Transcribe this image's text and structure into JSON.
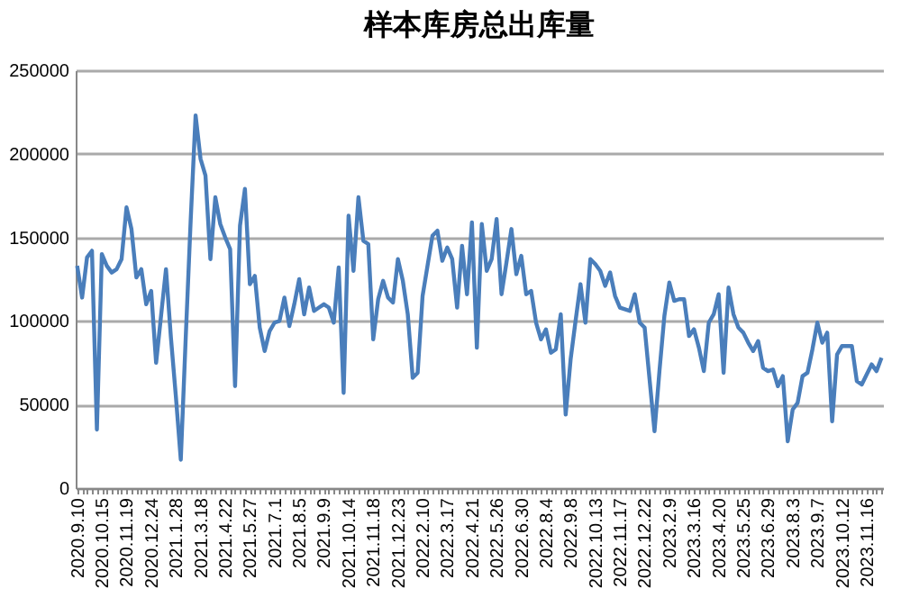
{
  "chart_data": {
    "type": "line",
    "title": "样本库房总出库量",
    "categories": [
      "2020.9.10",
      null,
      null,
      null,
      null,
      "2020.10.15",
      null,
      null,
      null,
      null,
      "2020.11.19",
      null,
      null,
      null,
      null,
      "2020.12.24",
      null,
      null,
      null,
      null,
      "2021.1.28",
      null,
      null,
      null,
      null,
      "2021.3.18",
      null,
      null,
      null,
      null,
      "2021.4.22",
      null,
      null,
      null,
      null,
      "2021.5.27",
      null,
      null,
      null,
      null,
      "2021.7.1",
      null,
      null,
      null,
      null,
      "2021.8.5",
      null,
      null,
      null,
      null,
      "2021.9.9",
      null,
      null,
      null,
      null,
      "2021.10.14",
      null,
      null,
      null,
      null,
      "2021.11.18",
      null,
      null,
      null,
      null,
      "2021.12.23",
      null,
      null,
      null,
      null,
      "2022.2.10",
      null,
      null,
      null,
      null,
      "2022.3.17",
      null,
      null,
      null,
      null,
      "2022.4.21",
      null,
      null,
      null,
      null,
      "2022.5.26",
      null,
      null,
      null,
      null,
      "2022.6.30",
      null,
      null,
      null,
      null,
      "2022.8.4",
      null,
      null,
      null,
      null,
      "2022.9.8",
      null,
      null,
      null,
      null,
      "2022.10.13",
      null,
      null,
      null,
      null,
      "2022.11.17",
      null,
      null,
      null,
      null,
      "2022.12.22",
      null,
      null,
      null,
      null,
      "2023.2.9",
      null,
      null,
      null,
      null,
      "2023.3.16",
      null,
      null,
      null,
      null,
      "2023.4.20",
      null,
      null,
      null,
      null,
      "2023.5.25",
      null,
      null,
      null,
      null,
      "2023.6.29",
      null,
      null,
      null,
      null,
      "2023.8.3",
      null,
      null,
      null,
      null,
      "2023.9.7",
      null,
      null,
      null,
      null,
      "2023.10.12",
      null,
      null,
      null,
      null,
      "2023.11.16",
      null,
      null,
      null
    ],
    "series": [
      {
        "color": "#4a7ebb",
        "values": [
          133000,
          114000,
          138000,
          142000,
          35000,
          140000,
          133000,
          129000,
          131000,
          137000,
          168000,
          155000,
          126000,
          131000,
          110000,
          118000,
          75000,
          103000,
          131000,
          90000,
          55000,
          17000,
          90000,
          160000,
          223000,
          197000,
          187000,
          137000,
          174000,
          158000,
          150000,
          143000,
          61000,
          157000,
          179000,
          122000,
          127000,
          96000,
          82000,
          94000,
          99000,
          100000,
          114000,
          97000,
          110000,
          125000,
          104000,
          120000,
          106000,
          108000,
          110000,
          108000,
          99000,
          132000,
          57000,
          163000,
          130000,
          174000,
          148000,
          146000,
          89000,
          113000,
          124000,
          114000,
          111000,
          137000,
          124000,
          104000,
          66000,
          69000,
          115000,
          133000,
          151000,
          154000,
          136000,
          144000,
          137000,
          108000,
          145000,
          116000,
          159000,
          84000,
          158000,
          130000,
          137000,
          161000,
          116000,
          135000,
          155000,
          128000,
          139000,
          116000,
          118000,
          99000,
          89000,
          95000,
          81000,
          83000,
          104000,
          44000,
          77000,
          100000,
          122000,
          99000,
          137000,
          134000,
          130000,
          121000,
          129000,
          115000,
          108000,
          107000,
          106000,
          116000,
          99000,
          96000,
          65000,
          34000,
          70000,
          103000,
          123000,
          112000,
          113000,
          113000,
          91000,
          95000,
          84000,
          70000,
          99000,
          104000,
          116000,
          69000,
          120000,
          104000,
          96000,
          93000,
          87000,
          82000,
          88000,
          72000,
          70000,
          71000,
          61000,
          67000,
          28000,
          47000,
          51000,
          67000,
          69000,
          83000,
          99000,
          87000,
          93000,
          40000,
          80000,
          85000,
          85000,
          85000,
          64000,
          62000,
          68000,
          74000,
          70000,
          78000
        ]
      }
    ],
    "ylim": [
      0,
      250000
    ],
    "yticks": [
      0,
      50000,
      100000,
      150000,
      200000,
      250000
    ],
    "grid": "y",
    "legend": false
  }
}
